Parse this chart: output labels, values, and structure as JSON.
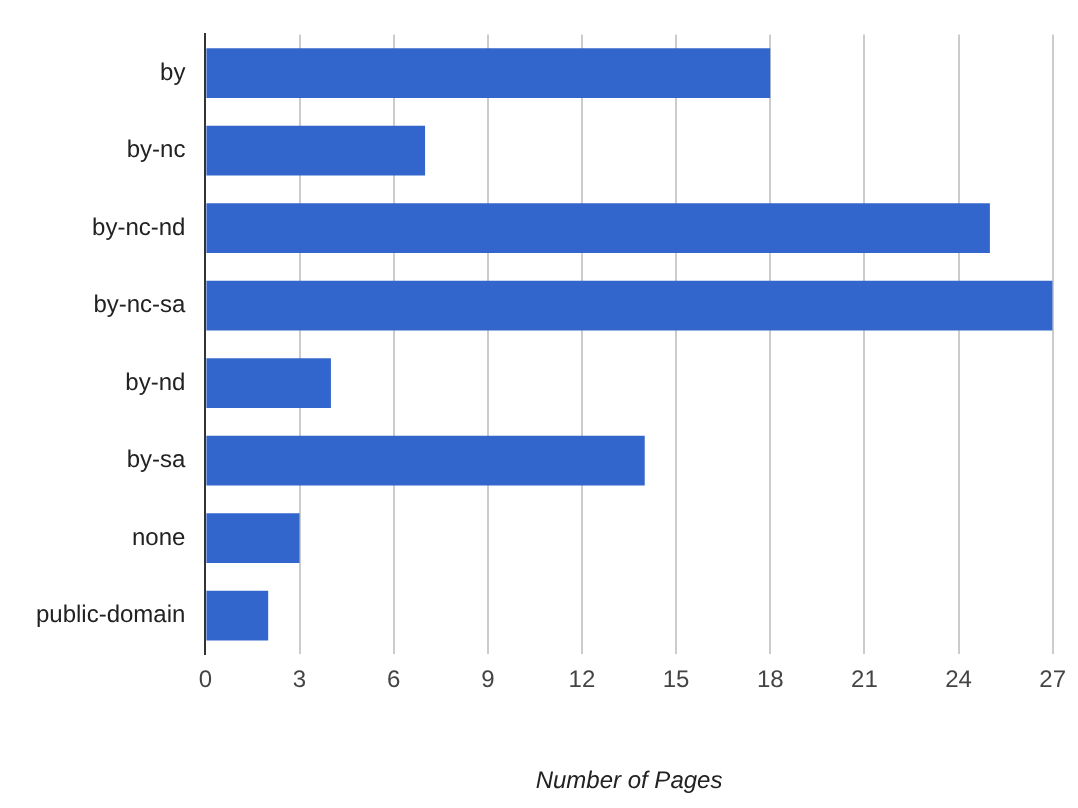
{
  "chart_data": {
    "type": "bar",
    "orientation": "horizontal",
    "xlabel": "Number of Pages",
    "categories": [
      "by",
      "by-nc",
      "by-nc-nd",
      "by-nc-sa",
      "by-nd",
      "by-sa",
      "none",
      "public-domain"
    ],
    "values": [
      18,
      7,
      25,
      27,
      4,
      14,
      3,
      2
    ],
    "color": "#3366cc",
    "xlim": [
      0,
      27
    ],
    "xticks": [
      0,
      3,
      6,
      9,
      12,
      15,
      18,
      21,
      24,
      27
    ],
    "grid": "x"
  }
}
